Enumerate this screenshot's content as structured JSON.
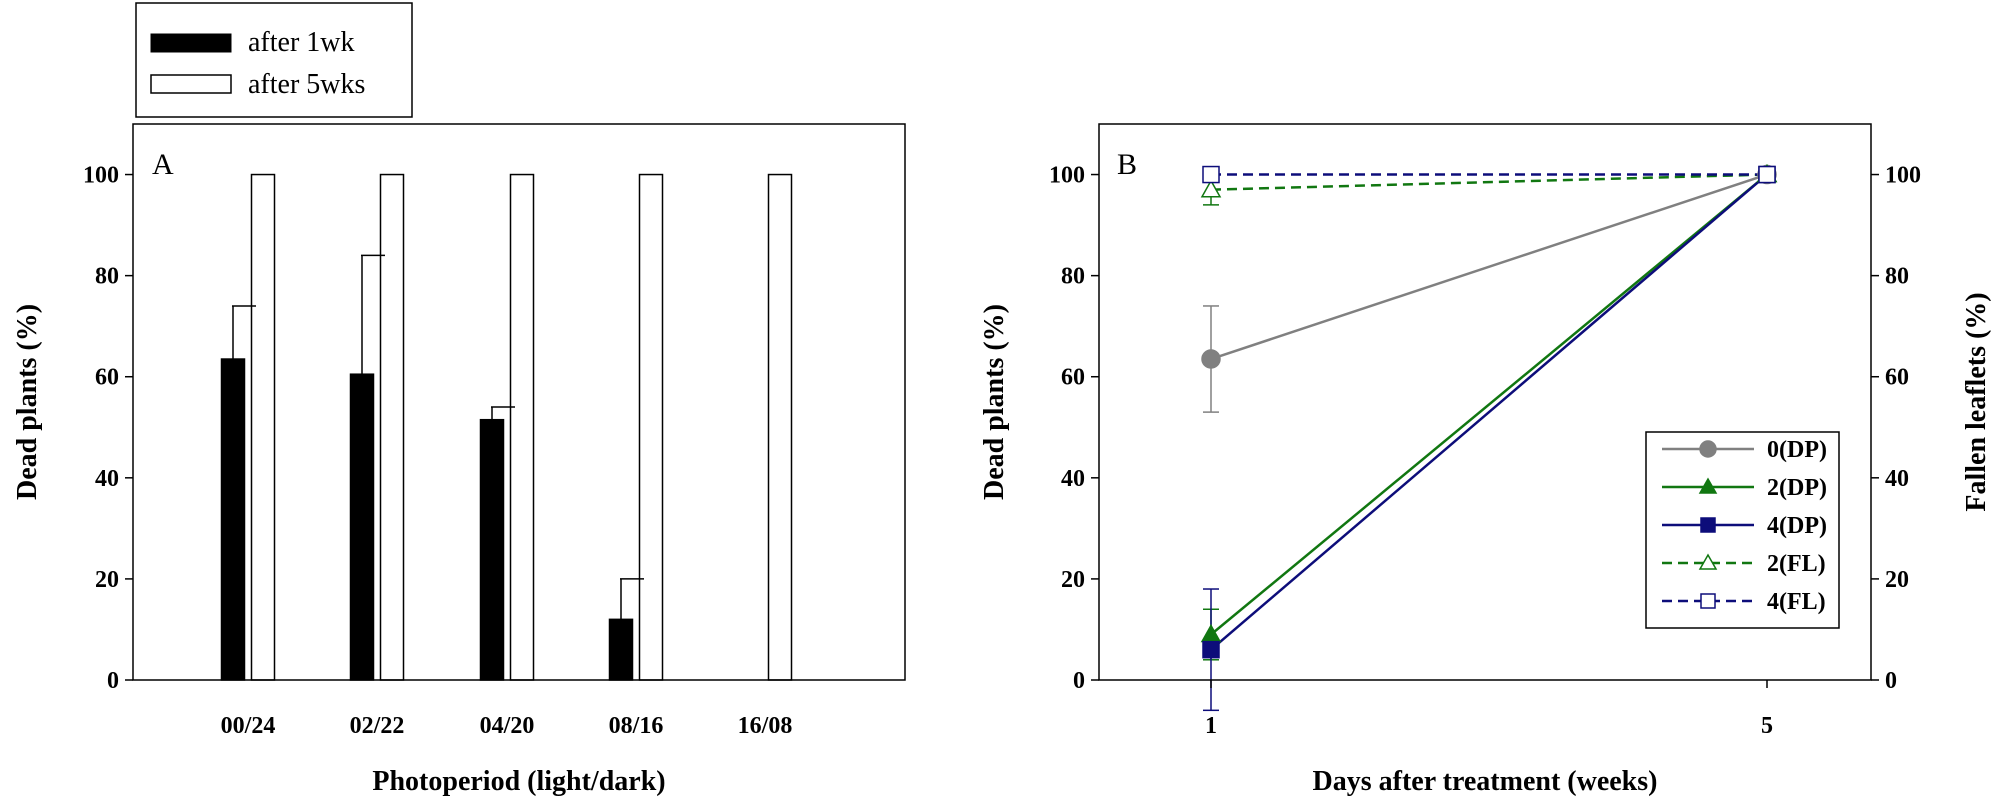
{
  "chart_data": [
    {
      "panel": "A",
      "type": "bar",
      "xlabel": "Photoperiod (light/dark)",
      "ylabel": "Dead plants (%)",
      "ylim": [
        0,
        110
      ],
      "yticks": [
        0,
        20,
        40,
        60,
        80,
        100
      ],
      "categories": [
        "00/24",
        "02/22",
        "04/20",
        "08/16",
        "16/08"
      ],
      "series": [
        {
          "name": "after 1wk",
          "color": "#000000",
          "fill": "solid",
          "values": [
            63.5,
            60.5,
            51.5,
            12,
            0
          ],
          "errors": [
            10.5,
            23.5,
            2.5,
            8,
            0
          ]
        },
        {
          "name": "after 5wks",
          "color": "#ffffff",
          "fill": "open",
          "values": [
            100,
            100,
            100,
            100,
            100
          ],
          "errors": [
            0,
            0,
            0,
            0,
            0
          ]
        }
      ],
      "legend": "top-left, outside above plot"
    },
    {
      "panel": "B",
      "type": "line",
      "xlabel": "Days after treatment (weeks)",
      "ylabel": "Dead plants (%)",
      "y2label": "Fallen leaflets (%)",
      "ylim": [
        0,
        110
      ],
      "yticks": [
        0,
        20,
        40,
        60,
        80,
        100
      ],
      "x": [
        1,
        5
      ],
      "xticks": [
        "1",
        "5"
      ],
      "series": [
        {
          "name": "0(DP)",
          "color": "#808080",
          "marker": "circle-filled",
          "dash": "solid",
          "values": [
            63.5,
            100
          ],
          "errors": [
            10.5,
            0
          ]
        },
        {
          "name": "2(DP)",
          "color": "#117711",
          "marker": "triangle-filled",
          "dash": "solid",
          "values": [
            9,
            100
          ],
          "errors": [
            5,
            0
          ]
        },
        {
          "name": "4(DP)",
          "color": "#0d0d7a",
          "marker": "square-filled",
          "dash": "solid",
          "values": [
            6,
            100
          ],
          "errors": [
            12,
            0
          ]
        },
        {
          "name": "2(FL)",
          "color": "#117711",
          "marker": "triangle-open",
          "dash": "dashed",
          "values": [
            97,
            100
          ],
          "errors": [
            3,
            0
          ]
        },
        {
          "name": "4(FL)",
          "color": "#0d0d7a",
          "marker": "square-open",
          "dash": "dashed",
          "values": [
            100,
            100
          ],
          "errors": [
            0,
            0
          ]
        }
      ],
      "legend": "lower-right inside plot"
    }
  ]
}
